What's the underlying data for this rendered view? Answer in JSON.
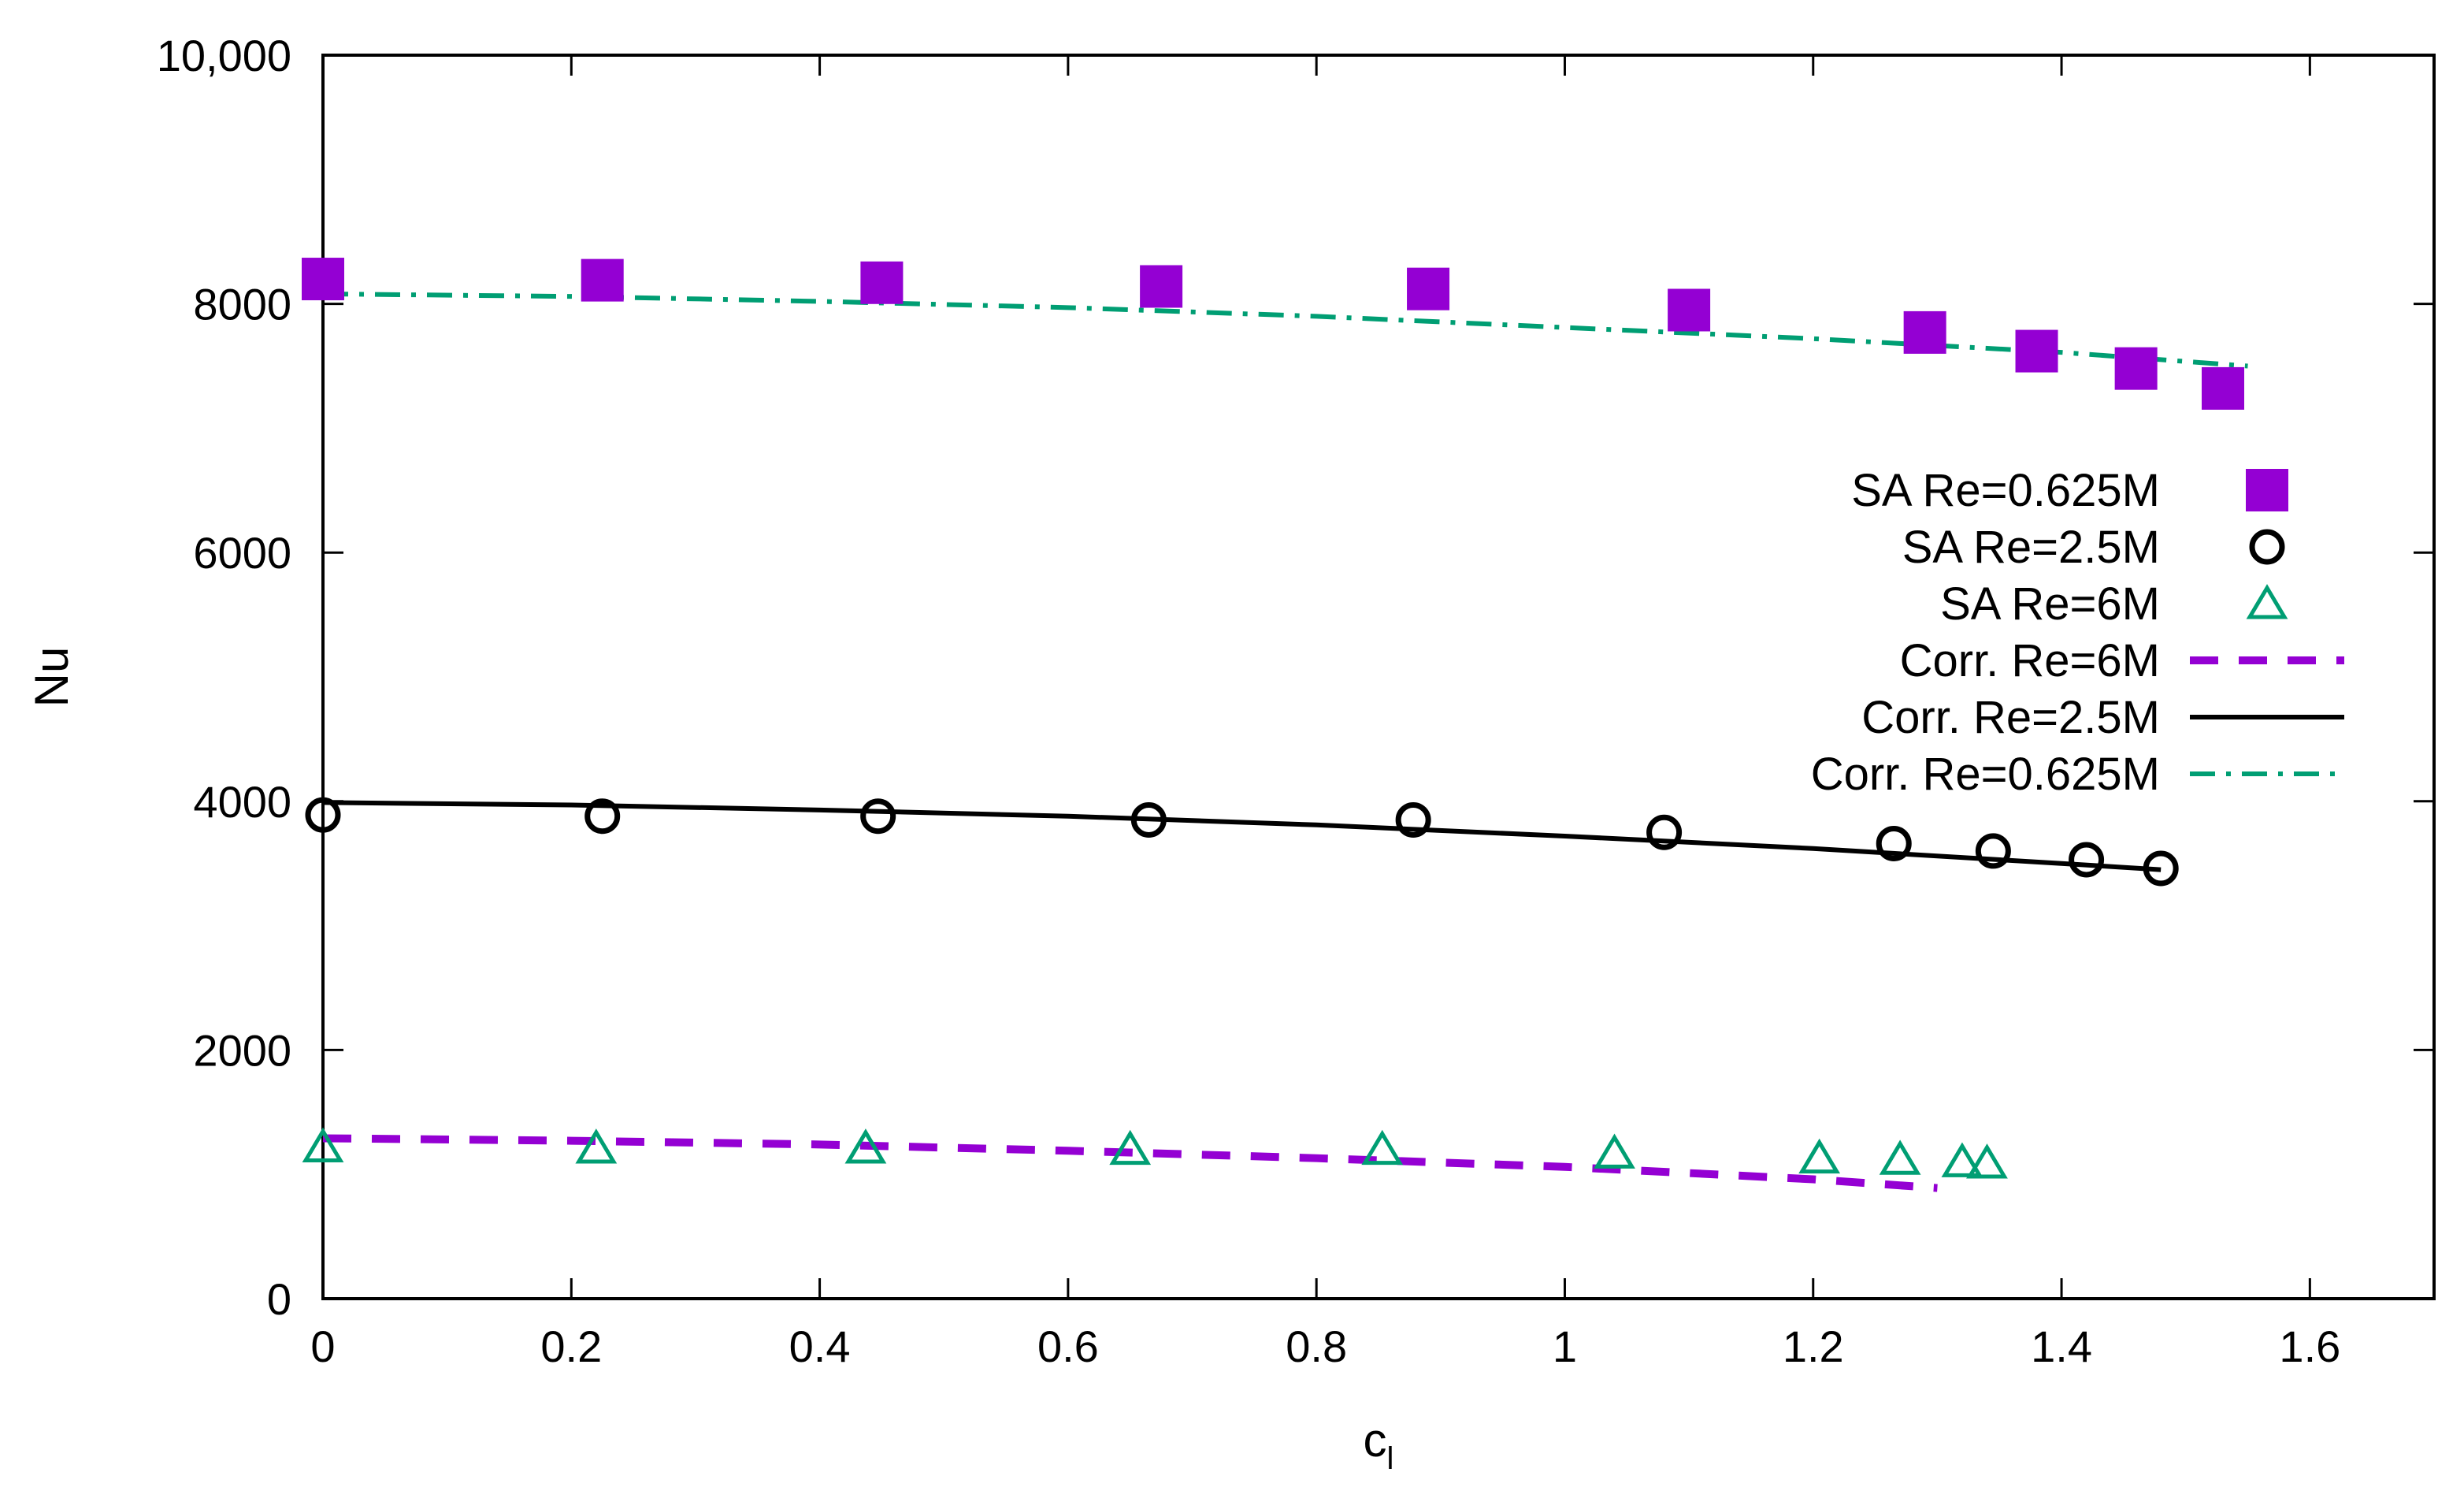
{
  "chart_data": {
    "type": "scatter",
    "title": "",
    "xlabel": "c",
    "xlabel_subscript": "l",
    "ylabel": "Nu",
    "xlim": [
      0,
      1.7
    ],
    "ylim": [
      0,
      10000
    ],
    "grid": false,
    "legend_position": "right-center",
    "x_ticks": [
      {
        "value": 0,
        "label": "0"
      },
      {
        "value": 0.2,
        "label": "0.2"
      },
      {
        "value": 0.4,
        "label": "0.4"
      },
      {
        "value": 0.6,
        "label": "0.6"
      },
      {
        "value": 0.8,
        "label": "0.8"
      },
      {
        "value": 1.0,
        "label": "1"
      },
      {
        "value": 1.2,
        "label": "1.2"
      },
      {
        "value": 1.4,
        "label": "1.4"
      },
      {
        "value": 1.6,
        "label": "1.6"
      }
    ],
    "y_ticks": [
      {
        "value": 0,
        "label": "0"
      },
      {
        "value": 2000,
        "label": "2000"
      },
      {
        "value": 4000,
        "label": "4000"
      },
      {
        "value": 6000,
        "label": "6000"
      },
      {
        "value": 8000,
        "label": "8000"
      },
      {
        "value": 10000,
        "label": "10,000"
      }
    ],
    "series": [
      {
        "name": "SA Re=0.625M",
        "kind": "marker",
        "marker": "square",
        "color": "#9400D3",
        "x": [
          0.0,
          0.225,
          0.45,
          0.675,
          0.89,
          1.1,
          1.29,
          1.38,
          1.46,
          1.53
        ],
        "y": [
          8200,
          8190,
          8170,
          8140,
          8120,
          7950,
          7770,
          7620,
          7480,
          7320
        ]
      },
      {
        "name": "SA Re=2.5M",
        "kind": "marker",
        "marker": "circle",
        "color": "#000000",
        "x": [
          0.0,
          0.225,
          0.447,
          0.665,
          0.878,
          1.08,
          1.265,
          1.345,
          1.42,
          1.48
        ],
        "y": [
          3890,
          3880,
          3880,
          3850,
          3850,
          3750,
          3660,
          3600,
          3530,
          3460
        ]
      },
      {
        "name": "SA Re=6M",
        "kind": "marker",
        "marker": "triangle",
        "color": "#009E73",
        "x": [
          0.0,
          0.22,
          0.437,
          0.65,
          0.853,
          1.04,
          1.205,
          1.27,
          1.32,
          1.34
        ],
        "y": [
          1220,
          1210,
          1210,
          1200,
          1200,
          1170,
          1130,
          1120,
          1100,
          1090
        ]
      },
      {
        "name": "Corr. Re=6M",
        "kind": "line",
        "dash": "dashed",
        "color": "#9400D3",
        "x": [
          0.0,
          0.2,
          0.4,
          0.6,
          0.8,
          1.0,
          1.1,
          1.2,
          1.3
        ],
        "y": [
          1290,
          1270,
          1240,
          1190,
          1130,
          1060,
          1010,
          960,
          890
        ]
      },
      {
        "name": "Corr. Re=2.5M",
        "kind": "line",
        "dash": "solid",
        "color": "#000000",
        "x": [
          0.0,
          0.2,
          0.4,
          0.6,
          0.8,
          1.0,
          1.2,
          1.4,
          1.48
        ],
        "y": [
          3990,
          3970,
          3930,
          3880,
          3810,
          3720,
          3620,
          3500,
          3450
        ]
      },
      {
        "name": "Corr. Re=0.625M",
        "kind": "line",
        "dash": "dashdot",
        "color": "#009E73",
        "x": [
          0.0,
          0.2,
          0.4,
          0.6,
          0.8,
          1.0,
          1.2,
          1.4,
          1.55
        ],
        "y": [
          8080,
          8060,
          8020,
          7970,
          7900,
          7810,
          7720,
          7610,
          7500
        ]
      }
    ]
  }
}
